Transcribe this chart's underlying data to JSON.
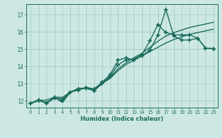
{
  "xlabel": "Humidex (Indice chaleur)",
  "bg_color": "#cde8e4",
  "grid_color": "#a0c8c0",
  "line_color": "#1a6b5a",
  "xlim": [
    -0.5,
    23.5
  ],
  "ylim": [
    11.6,
    17.6
  ],
  "xticks": [
    0,
    1,
    2,
    3,
    4,
    5,
    6,
    7,
    8,
    9,
    10,
    11,
    12,
    13,
    14,
    15,
    16,
    17,
    18,
    19,
    20,
    21,
    22,
    23
  ],
  "yticks": [
    12,
    13,
    14,
    15,
    16,
    17
  ],
  "series": [
    {
      "x": [
        0,
        1,
        2,
        3,
        4,
        5,
        6,
        7,
        8,
        9,
        10,
        11,
        12,
        13,
        14,
        15,
        16,
        17,
        18,
        19,
        20,
        21,
        22,
        23
      ],
      "y": [
        11.85,
        12.0,
        12.05,
        12.2,
        11.9,
        12.5,
        12.65,
        12.72,
        12.6,
        13.0,
        13.3,
        13.75,
        14.1,
        14.35,
        14.6,
        14.85,
        15.1,
        15.35,
        15.55,
        15.7,
        15.85,
        15.95,
        16.05,
        16.15
      ],
      "marker": null,
      "lw": 1.0
    },
    {
      "x": [
        0,
        1,
        2,
        3,
        4,
        5,
        6,
        7,
        8,
        9,
        10,
        11,
        12,
        13,
        14,
        15,
        16,
        17,
        18,
        19,
        20,
        21,
        22,
        23
      ],
      "y": [
        11.85,
        12.05,
        11.85,
        12.2,
        12.2,
        12.5,
        12.72,
        12.72,
        12.68,
        13.05,
        13.35,
        13.85,
        14.2,
        14.5,
        14.75,
        15.1,
        15.45,
        15.75,
        15.95,
        16.1,
        16.25,
        16.35,
        16.45,
        16.55
      ],
      "marker": null,
      "lw": 1.0
    },
    {
      "x": [
        0,
        1,
        2,
        3,
        4,
        5,
        6,
        7,
        8,
        9,
        10,
        11,
        12,
        13,
        14,
        15,
        16,
        17,
        18,
        19,
        20,
        21,
        22,
        23
      ],
      "y": [
        11.85,
        12.0,
        11.9,
        12.2,
        12.1,
        12.5,
        12.62,
        12.78,
        12.68,
        13.08,
        13.52,
        14.35,
        14.5,
        14.35,
        14.62,
        14.92,
        15.82,
        17.3,
        15.75,
        15.52,
        15.52,
        15.62,
        15.05,
        15.02
      ],
      "marker": "+",
      "lw": 1.0
    },
    {
      "x": [
        0,
        1,
        2,
        3,
        4,
        5,
        6,
        7,
        8,
        9,
        10,
        11,
        12,
        13,
        14,
        15,
        16,
        17,
        18,
        19,
        20,
        21,
        22,
        23
      ],
      "y": [
        11.85,
        12.05,
        11.85,
        12.15,
        12.0,
        12.5,
        12.68,
        12.72,
        12.58,
        13.0,
        13.42,
        14.08,
        14.38,
        14.42,
        14.68,
        15.48,
        16.42,
        15.95,
        15.82,
        15.82,
        15.82,
        15.62,
        15.05,
        15.02
      ],
      "marker": "+",
      "lw": 1.0
    }
  ]
}
